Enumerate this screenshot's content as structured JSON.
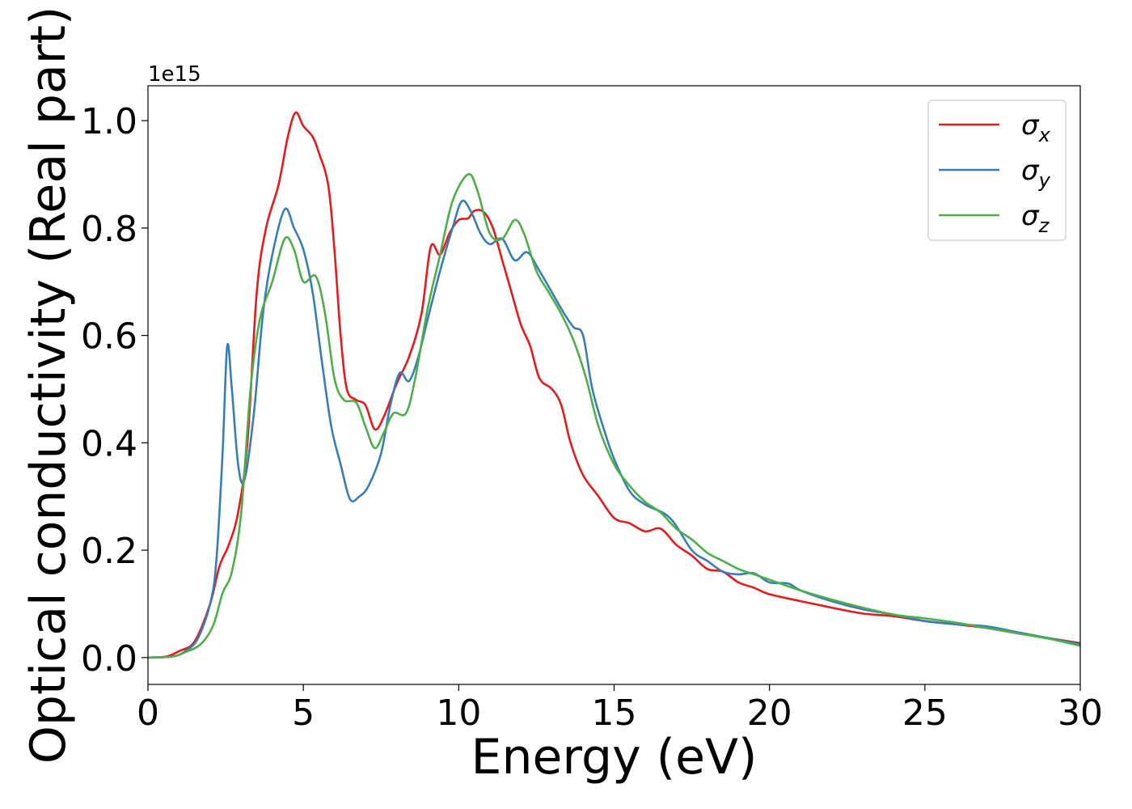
{
  "chart_data": {
    "type": "line",
    "xlabel": "Energy (eV)",
    "ylabel": "Optical conductivity (Real part)",
    "y_offset_text": "1e15",
    "xlim": [
      0,
      30
    ],
    "ylim": [
      -0.05,
      1.065
    ],
    "x_ticks": [
      0,
      5,
      10,
      15,
      20,
      25,
      30
    ],
    "x_tick_labels": [
      "0",
      "5",
      "10",
      "15",
      "20",
      "25",
      "30"
    ],
    "y_ticks": [
      0.0,
      0.2,
      0.4,
      0.6,
      0.8,
      1.0
    ],
    "y_tick_labels": [
      "0.0",
      "0.2",
      "0.4",
      "0.6",
      "0.8",
      "1.0"
    ],
    "grid": false,
    "legend_position": "top-right",
    "series": [
      {
        "name": "σ",
        "subscript": "x",
        "color": "#e41a1c",
        "points": [
          [
            0,
            0
          ],
          [
            0.6,
            0.002
          ],
          [
            1.0,
            0.012
          ],
          [
            1.5,
            0.03
          ],
          [
            2.0,
            0.1
          ],
          [
            2.3,
            0.17
          ],
          [
            2.6,
            0.21
          ],
          [
            2.9,
            0.27
          ],
          [
            3.2,
            0.4
          ],
          [
            3.5,
            0.68
          ],
          [
            3.8,
            0.8
          ],
          [
            4.2,
            0.88
          ],
          [
            4.5,
            0.97
          ],
          [
            4.75,
            1.015
          ],
          [
            5.0,
            0.99
          ],
          [
            5.3,
            0.97
          ],
          [
            5.5,
            0.94
          ],
          [
            5.8,
            0.88
          ],
          [
            6.0,
            0.76
          ],
          [
            6.2,
            0.6
          ],
          [
            6.4,
            0.5
          ],
          [
            6.7,
            0.48
          ],
          [
            7.0,
            0.47
          ],
          [
            7.3,
            0.425
          ],
          [
            7.6,
            0.45
          ],
          [
            8.0,
            0.51
          ],
          [
            8.4,
            0.56
          ],
          [
            8.8,
            0.64
          ],
          [
            9.1,
            0.765
          ],
          [
            9.4,
            0.75
          ],
          [
            9.7,
            0.79
          ],
          [
            10.0,
            0.815
          ],
          [
            10.3,
            0.818
          ],
          [
            10.5,
            0.832
          ],
          [
            10.8,
            0.83
          ],
          [
            11.1,
            0.8
          ],
          [
            11.4,
            0.74
          ],
          [
            11.7,
            0.68
          ],
          [
            12.0,
            0.62
          ],
          [
            12.3,
            0.58
          ],
          [
            12.6,
            0.52
          ],
          [
            13.0,
            0.5
          ],
          [
            13.3,
            0.47
          ],
          [
            13.6,
            0.4
          ],
          [
            14.0,
            0.34
          ],
          [
            14.5,
            0.3
          ],
          [
            15.0,
            0.26
          ],
          [
            15.5,
            0.25
          ],
          [
            16.0,
            0.235
          ],
          [
            16.5,
            0.24
          ],
          [
            17.0,
            0.21
          ],
          [
            17.5,
            0.19
          ],
          [
            18.0,
            0.165
          ],
          [
            18.5,
            0.16
          ],
          [
            19.0,
            0.14
          ],
          [
            19.5,
            0.13
          ],
          [
            20.0,
            0.118
          ],
          [
            21.0,
            0.105
          ],
          [
            22.0,
            0.093
          ],
          [
            23.0,
            0.082
          ],
          [
            24.0,
            0.077
          ],
          [
            25.0,
            0.068
          ],
          [
            26.0,
            0.062
          ],
          [
            27.0,
            0.055
          ],
          [
            28.0,
            0.045
          ],
          [
            29.0,
            0.036
          ],
          [
            30.0,
            0.027
          ]
        ]
      },
      {
        "name": "σ",
        "subscript": "y",
        "color": "#377eb8",
        "points": [
          [
            0,
            0
          ],
          [
            0.8,
            0.002
          ],
          [
            1.2,
            0.012
          ],
          [
            1.6,
            0.035
          ],
          [
            2.0,
            0.1
          ],
          [
            2.2,
            0.18
          ],
          [
            2.4,
            0.38
          ],
          [
            2.55,
            0.58
          ],
          [
            2.7,
            0.5
          ],
          [
            2.9,
            0.36
          ],
          [
            3.1,
            0.33
          ],
          [
            3.4,
            0.45
          ],
          [
            3.7,
            0.64
          ],
          [
            4.0,
            0.75
          ],
          [
            4.4,
            0.835
          ],
          [
            4.7,
            0.8
          ],
          [
            5.0,
            0.76
          ],
          [
            5.3,
            0.68
          ],
          [
            5.6,
            0.55
          ],
          [
            5.9,
            0.43
          ],
          [
            6.2,
            0.36
          ],
          [
            6.5,
            0.295
          ],
          [
            6.8,
            0.3
          ],
          [
            7.1,
            0.32
          ],
          [
            7.5,
            0.38
          ],
          [
            7.8,
            0.47
          ],
          [
            8.1,
            0.53
          ],
          [
            8.4,
            0.515
          ],
          [
            8.7,
            0.56
          ],
          [
            9.0,
            0.63
          ],
          [
            9.4,
            0.72
          ],
          [
            9.8,
            0.8
          ],
          [
            10.1,
            0.85
          ],
          [
            10.4,
            0.83
          ],
          [
            10.7,
            0.79
          ],
          [
            11.0,
            0.77
          ],
          [
            11.4,
            0.78
          ],
          [
            11.8,
            0.74
          ],
          [
            12.2,
            0.755
          ],
          [
            12.6,
            0.72
          ],
          [
            13.0,
            0.68
          ],
          [
            13.4,
            0.64
          ],
          [
            13.7,
            0.615
          ],
          [
            14.0,
            0.6
          ],
          [
            14.3,
            0.5
          ],
          [
            14.7,
            0.42
          ],
          [
            15.0,
            0.37
          ],
          [
            15.5,
            0.31
          ],
          [
            16.0,
            0.285
          ],
          [
            16.8,
            0.26
          ],
          [
            17.5,
            0.2
          ],
          [
            18.0,
            0.18
          ],
          [
            18.5,
            0.16
          ],
          [
            19.0,
            0.155
          ],
          [
            19.5,
            0.157
          ],
          [
            20.0,
            0.14
          ],
          [
            20.6,
            0.138
          ],
          [
            21.0,
            0.125
          ],
          [
            22.0,
            0.105
          ],
          [
            23.0,
            0.09
          ],
          [
            24.0,
            0.08
          ],
          [
            25.0,
            0.068
          ],
          [
            26.0,
            0.062
          ],
          [
            27.0,
            0.058
          ],
          [
            28.0,
            0.047
          ],
          [
            29.0,
            0.036
          ],
          [
            30.0,
            0.025
          ]
        ]
      },
      {
        "name": "σ",
        "subscript": "z",
        "color": "#4daf4a",
        "points": [
          [
            0,
            0
          ],
          [
            0.8,
            0.002
          ],
          [
            1.2,
            0.01
          ],
          [
            1.7,
            0.025
          ],
          [
            2.1,
            0.06
          ],
          [
            2.4,
            0.12
          ],
          [
            2.7,
            0.16
          ],
          [
            3.0,
            0.27
          ],
          [
            3.3,
            0.5
          ],
          [
            3.6,
            0.63
          ],
          [
            4.0,
            0.7
          ],
          [
            4.4,
            0.78
          ],
          [
            4.7,
            0.76
          ],
          [
            5.0,
            0.7
          ],
          [
            5.4,
            0.71
          ],
          [
            5.7,
            0.64
          ],
          [
            6.0,
            0.52
          ],
          [
            6.3,
            0.48
          ],
          [
            6.7,
            0.475
          ],
          [
            7.0,
            0.43
          ],
          [
            7.3,
            0.39
          ],
          [
            7.6,
            0.42
          ],
          [
            7.9,
            0.455
          ],
          [
            8.3,
            0.455
          ],
          [
            8.6,
            0.52
          ],
          [
            9.0,
            0.65
          ],
          [
            9.4,
            0.75
          ],
          [
            9.8,
            0.85
          ],
          [
            10.3,
            0.9
          ],
          [
            10.6,
            0.87
          ],
          [
            11.0,
            0.79
          ],
          [
            11.4,
            0.78
          ],
          [
            11.8,
            0.815
          ],
          [
            12.1,
            0.79
          ],
          [
            12.5,
            0.72
          ],
          [
            12.9,
            0.68
          ],
          [
            13.3,
            0.64
          ],
          [
            13.7,
            0.59
          ],
          [
            14.1,
            0.52
          ],
          [
            14.5,
            0.43
          ],
          [
            15.0,
            0.36
          ],
          [
            15.5,
            0.32
          ],
          [
            16.0,
            0.29
          ],
          [
            16.5,
            0.27
          ],
          [
            17.0,
            0.24
          ],
          [
            17.5,
            0.22
          ],
          [
            18.0,
            0.195
          ],
          [
            18.5,
            0.18
          ],
          [
            19.0,
            0.165
          ],
          [
            19.5,
            0.155
          ],
          [
            20.0,
            0.145
          ],
          [
            21.0,
            0.125
          ],
          [
            22.0,
            0.108
          ],
          [
            23.0,
            0.093
          ],
          [
            24.0,
            0.08
          ],
          [
            25.0,
            0.073
          ],
          [
            26.0,
            0.065
          ],
          [
            27.0,
            0.055
          ],
          [
            28.0,
            0.045
          ],
          [
            29.0,
            0.035
          ],
          [
            30.0,
            0.022
          ]
        ]
      }
    ]
  }
}
